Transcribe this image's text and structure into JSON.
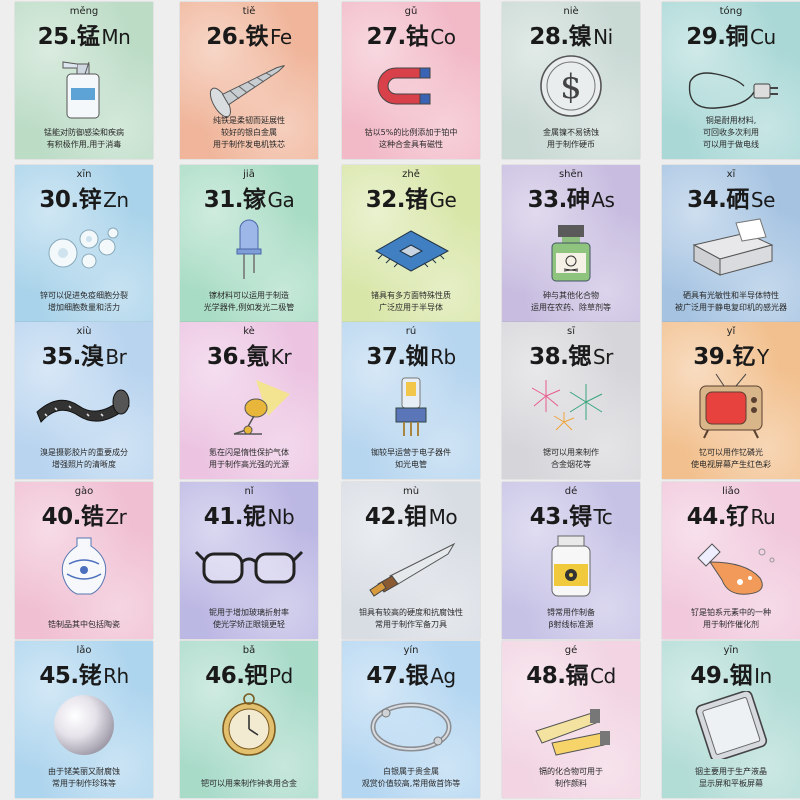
{
  "cards": [
    {
      "num": "25.",
      "ch": "锰",
      "sym": "Mn",
      "py": "měng",
      "bg": "#bcdcc6",
      "icon": "spray-bottle-icon",
      "lines": [
        "锰能对防御感染和疾病",
        "有积极作用,用于消毒"
      ]
    },
    {
      "num": "26.",
      "ch": "铁",
      "sym": "Fe",
      "py": "tiě",
      "bg": "#f0b59a",
      "icon": "screw-icon",
      "lines": [
        "纯铁是柔韧而延展性",
        "较好的银白金属",
        "用于制作发电机铁芯"
      ]
    },
    {
      "num": "27.",
      "ch": "钴",
      "sym": "Co",
      "py": "gǔ",
      "bg": "#f2b9c7",
      "icon": "magnet-icon",
      "lines": [
        "钴以5%的比例添加于铂中",
        "这种合金具有磁性"
      ]
    },
    {
      "num": "28.",
      "ch": "镍",
      "sym": "Ni",
      "py": "niè",
      "bg": "#c9d9d4",
      "icon": "coin-icon",
      "lines": [
        "金属镍不易锈蚀",
        "用于制作硬币"
      ]
    },
    {
      "num": "29.",
      "ch": "铜",
      "sym": "Cu",
      "py": "tóng",
      "bg": "#a9d8d6",
      "icon": "power-cable-icon",
      "lines": [
        "铜是耐用材料,",
        "可回收多次利用",
        "可以用于做电线"
      ]
    },
    {
      "num": "30.",
      "ch": "锌",
      "sym": "Zn",
      "py": "xīn",
      "bg": "#a9d3ea",
      "icon": "cells-icon",
      "lines": [
        "锌可以促进免疫细胞分裂",
        "增加细胞数量和活力"
      ]
    },
    {
      "num": "31.",
      "ch": "镓",
      "sym": "Ga",
      "py": "jiā",
      "bg": "#a8dcc4",
      "icon": "led-bulb-icon",
      "lines": [
        "镓材料可以运用于制造",
        "光学器件,例如发光二极管"
      ]
    },
    {
      "num": "32.",
      "ch": "锗",
      "sym": "Ge",
      "py": "zhě",
      "bg": "#d8e6a8",
      "icon": "chip-icon",
      "lines": [
        "锗具有多方面特殊性质",
        "广泛应用于半导体"
      ]
    },
    {
      "num": "33.",
      "ch": "砷",
      "sym": "As",
      "py": "shēn",
      "bg": "#c8bde0",
      "icon": "poison-bottle-icon",
      "lines": [
        "砷与其他化合物",
        "运用在农药、除草剂等"
      ]
    },
    {
      "num": "34.",
      "ch": "硒",
      "sym": "Se",
      "py": "xī",
      "bg": "#a6c4e2",
      "icon": "printer-icon",
      "lines": [
        "硒具有光敏性和半导体特性",
        "被广泛用于静电复印机的感光器"
      ]
    },
    {
      "num": "35.",
      "ch": "溴",
      "sym": "Br",
      "py": "xiù",
      "bg": "#b8d4ef",
      "icon": "film-roll-icon",
      "lines": [
        "溴是摄影胶片的重要成分",
        "增强照片的清晰度"
      ]
    },
    {
      "num": "36.",
      "ch": "氪",
      "sym": "Kr",
      "py": "kè",
      "bg": "#ecc4e2",
      "icon": "spotlight-icon",
      "lines": [
        "氪在闪是惰性保护气体",
        "用于制作高光强的光源"
      ]
    },
    {
      "num": "37.",
      "ch": "铷",
      "sym": "Rb",
      "py": "rú",
      "bg": "#b6d5ef",
      "icon": "vacuum-tube-icon",
      "lines": [
        "铷较早运营于电子器件",
        "如光电管"
      ]
    },
    {
      "num": "38.",
      "ch": "锶",
      "sym": "Sr",
      "py": "sī",
      "bg": "#d6d6da",
      "icon": "fireworks-icon",
      "lines": [
        "锶可以用来制作",
        "合金烟花等"
      ]
    },
    {
      "num": "39.",
      "ch": "钇",
      "sym": "Y",
      "py": "yǐ",
      "bg": "#f2c08e",
      "icon": "tv-icon",
      "lines": [
        "钇可以用作钇磷光",
        "使电视屏幕产生红色彩"
      ]
    },
    {
      "num": "40.",
      "ch": "锆",
      "sym": "Zr",
      "py": "gào",
      "bg": "#f0bfd2",
      "icon": "vase-icon",
      "lines": [
        "锆制品其中包括陶瓷"
      ]
    },
    {
      "num": "41.",
      "ch": "铌",
      "sym": "Nb",
      "py": "nǐ",
      "bg": "#bcb8e4",
      "icon": "glasses-icon",
      "lines": [
        "铌用于增加玻璃折射率",
        "使光学矫正眼镜更轻"
      ]
    },
    {
      "num": "42.",
      "ch": "钼",
      "sym": "Mo",
      "py": "mù",
      "bg": "#d8dde4",
      "icon": "knife-icon",
      "lines": [
        "钼具有较高的硬度和抗腐蚀性",
        "常用于制作军备刀具"
      ]
    },
    {
      "num": "43.",
      "ch": "锝",
      "sym": "Tc",
      "py": "dé",
      "bg": "#c6c2e6",
      "icon": "medicine-bottle-icon",
      "lines": [
        "锝常用作制备",
        "β射线标准源"
      ]
    },
    {
      "num": "44.",
      "ch": "钌",
      "sym": "Ru",
      "py": "liǎo",
      "bg": "#f1c8dc",
      "icon": "flask-icon",
      "lines": [
        "钌是铂系元素中的一种",
        "用于制作催化剂"
      ]
    },
    {
      "num": "45.",
      "ch": "铑",
      "sym": "Rh",
      "py": "lǎo",
      "bg": "#aed5ee",
      "icon": "pearl-icon",
      "lines": [
        "由于铑美丽又耐腐蚀",
        "常用于制作珍珠等"
      ]
    },
    {
      "num": "46.",
      "ch": "钯",
      "sym": "Pd",
      "py": "bǎ",
      "bg": "#a9dbc9",
      "icon": "pocket-watch-icon",
      "lines": [
        "钯可以用来制作钟表用合金"
      ]
    },
    {
      "num": "47.",
      "ch": "银",
      "sym": "Ag",
      "py": "yín",
      "bg": "#b4d6f1",
      "icon": "bracelet-icon",
      "lines": [
        "白银属于贵金属",
        "观赏价值较高,常用做首饰等"
      ]
    },
    {
      "num": "48.",
      "ch": "镉",
      "sym": "Cd",
      "py": "gé",
      "bg": "#f2d4e2",
      "icon": "paint-tubes-icon",
      "lines": [
        "镉的化合物可用于",
        "制作颜料"
      ]
    },
    {
      "num": "49.",
      "ch": "铟",
      "sym": "In",
      "py": "yīn",
      "bg": "#b2dcd6",
      "icon": "tablet-icon",
      "lines": [
        "铟主要用于生产液晶",
        "显示屏和平板屏幕"
      ]
    }
  ]
}
